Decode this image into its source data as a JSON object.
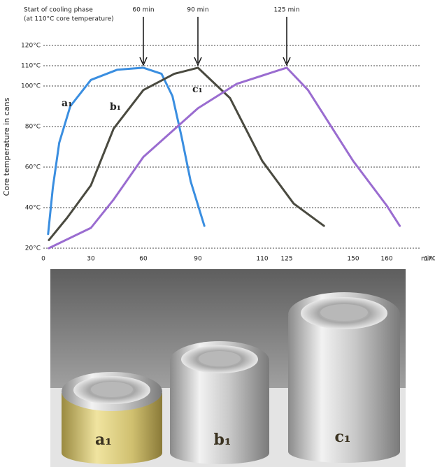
{
  "chart_data": {
    "type": "line",
    "annotation_title": [
      "Start of cooling phase",
      "(at 110°C core temperature)"
    ],
    "y_label": "Core temperature in cans",
    "x_label": "min",
    "annotations": [
      {
        "text": "60 min",
        "x": 60
      },
      {
        "text": "90 min",
        "x": 90
      },
      {
        "text": "125 min",
        "x": 125
      }
    ],
    "ylim": [
      20,
      120
    ],
    "yticks": [
      {
        "value": 20,
        "label": "20°C"
      },
      {
        "value": 40,
        "label": "40°C"
      },
      {
        "value": 60,
        "label": "60°C"
      },
      {
        "value": 80,
        "label": "80°C"
      },
      {
        "value": 100,
        "label": "100°C"
      },
      {
        "value": 110,
        "label": "110°C"
      },
      {
        "value": 120,
        "label": "120°C"
      }
    ],
    "xlim": [
      0,
      170
    ],
    "xticks": [
      0,
      30,
      60,
      90,
      110,
      125,
      150,
      160,
      170
    ],
    "grid": true,
    "series": [
      {
        "name": "a₁",
        "color": "#3a8ee0",
        "x": [
          3,
          6,
          10,
          17,
          30,
          45,
          60,
          70,
          76,
          81,
          86,
          92
        ],
        "y": [
          27,
          50,
          72,
          90,
          103,
          108,
          109,
          106,
          95,
          75,
          53,
          31
        ]
      },
      {
        "name": "b₁",
        "color": "#4a4a40",
        "x": [
          3.5,
          15,
          30,
          43,
          60,
          77,
          90,
          100,
          110,
          127.6,
          139
        ],
        "y": [
          24,
          35,
          51,
          79,
          98,
          106,
          109,
          94,
          63,
          42,
          31
        ]
      },
      {
        "name": "c₁",
        "color": "#9a6cd0",
        "x": [
          3.5,
          30,
          43,
          60,
          90,
          102,
          121,
          125,
          133,
          150,
          160,
          163
        ],
        "y": [
          20,
          30,
          44,
          65,
          89,
          101,
          108,
          109,
          98,
          63,
          41,
          31
        ]
      }
    ]
  },
  "photo": {
    "labels": [
      "a₁",
      "b₁",
      "c₁"
    ]
  }
}
